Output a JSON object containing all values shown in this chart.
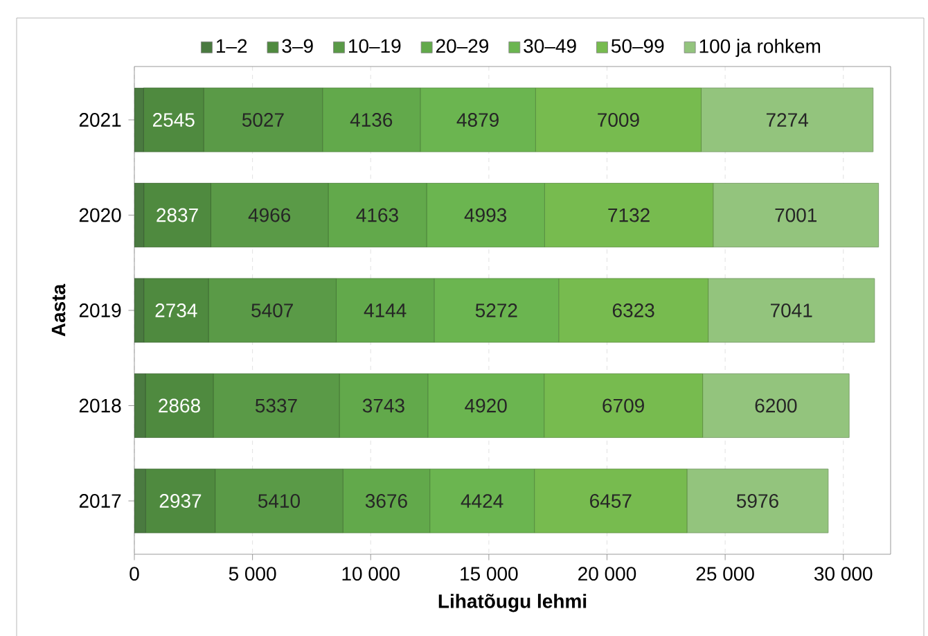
{
  "chart_data": {
    "type": "bar",
    "orientation": "horizontal",
    "stacked": true,
    "xlabel": "Lihatõugu lehmi",
    "ylabel": "Aasta",
    "categories": [
      "2021",
      "2020",
      "2019",
      "2018",
      "2017"
    ],
    "series": [
      {
        "name": "1–2",
        "color": "#4a7a40",
        "values": [
          390,
          400,
          400,
          470,
          480
        ]
      },
      {
        "name": "3–9",
        "color": "#4f8a3f",
        "values": [
          2545,
          2837,
          2734,
          2868,
          2937
        ],
        "value_labels": [
          "2545",
          "2837",
          "2734",
          "2868",
          "2937"
        ]
      },
      {
        "name": "10–19",
        "color": "#5a9a47",
        "values": [
          5027,
          4966,
          5407,
          5337,
          5410
        ],
        "value_labels": [
          "5027",
          "4966",
          "5407",
          "5337",
          "5410"
        ]
      },
      {
        "name": "20–29",
        "color": "#62a94b",
        "values": [
          4136,
          4163,
          4144,
          3743,
          3676
        ],
        "value_labels": [
          "4136",
          "4163",
          "4144",
          "3743",
          "3676"
        ]
      },
      {
        "name": "30–49",
        "color": "#6bb550",
        "values": [
          4879,
          4993,
          5272,
          4920,
          4424
        ],
        "value_labels": [
          "4879",
          "4993",
          "5272",
          "4920",
          "4424"
        ]
      },
      {
        "name": "50–99",
        "color": "#77bb4f",
        "values": [
          7009,
          7132,
          6323,
          6709,
          6457
        ],
        "value_labels": [
          "7009",
          "7132",
          "6323",
          "6709",
          "6457"
        ]
      },
      {
        "name": "100 ja rohkem",
        "color": "#93c47d",
        "values": [
          7274,
          7001,
          7041,
          6200,
          5976
        ],
        "value_labels": [
          "7274",
          "7001",
          "7041",
          "6200",
          "5976"
        ]
      }
    ],
    "xlim": [
      0,
      32000
    ],
    "xticks": [
      0,
      {
        "value": 5000,
        "label": "5 000"
      },
      {
        "value": 10000,
        "label": "10 000"
      },
      {
        "value": 15000,
        "label": "15 000"
      },
      {
        "value": 20000,
        "label": "20 000"
      },
      {
        "value": 25000,
        "label": "25 000"
      },
      {
        "value": 30000,
        "label": "30 000"
      }
    ],
    "grid": "x",
    "legend": "top"
  }
}
